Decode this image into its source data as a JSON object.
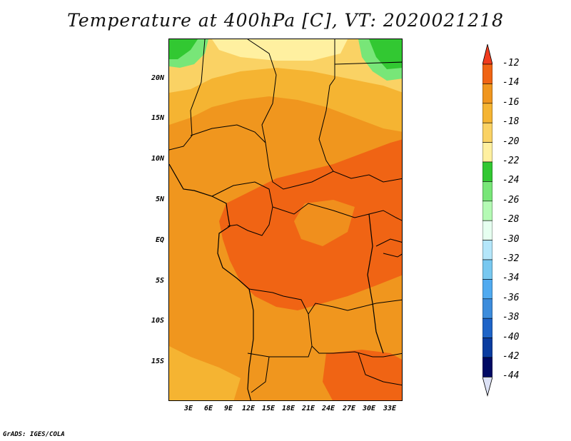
{
  "title": "Temperature at 400hPa [C], VT: 2020021218",
  "credit": "GrADS: IGES/COLA",
  "lat_labels": [
    "20N",
    "15N",
    "10N",
    "5N",
    "EQ",
    "5S",
    "10S",
    "15S"
  ],
  "lon_labels": [
    "3E",
    "6E",
    "9E",
    "12E",
    "15E",
    "18E",
    "21E",
    "24E",
    "27E",
    "30E",
    "33E"
  ],
  "colorbar": {
    "labels": [
      "-12",
      "-14",
      "-16",
      "-18",
      "-20",
      "-22",
      "-24",
      "-26",
      "-28",
      "-30",
      "-32",
      "-34",
      "-36",
      "-38",
      "-40",
      "-42",
      "-44"
    ],
    "colors": [
      "#f03c1e",
      "#f06414",
      "#f0961e",
      "#f5b432",
      "#fad264",
      "#fff0a0",
      "#32c832",
      "#78e678",
      "#b4fab4",
      "#e6fff0",
      "#b4e6fa",
      "#78c8f0",
      "#50aaf0",
      "#3c8cdc",
      "#1e64c8",
      "#0a3ca0",
      "#000a64",
      "#dce1f5"
    ]
  }
}
